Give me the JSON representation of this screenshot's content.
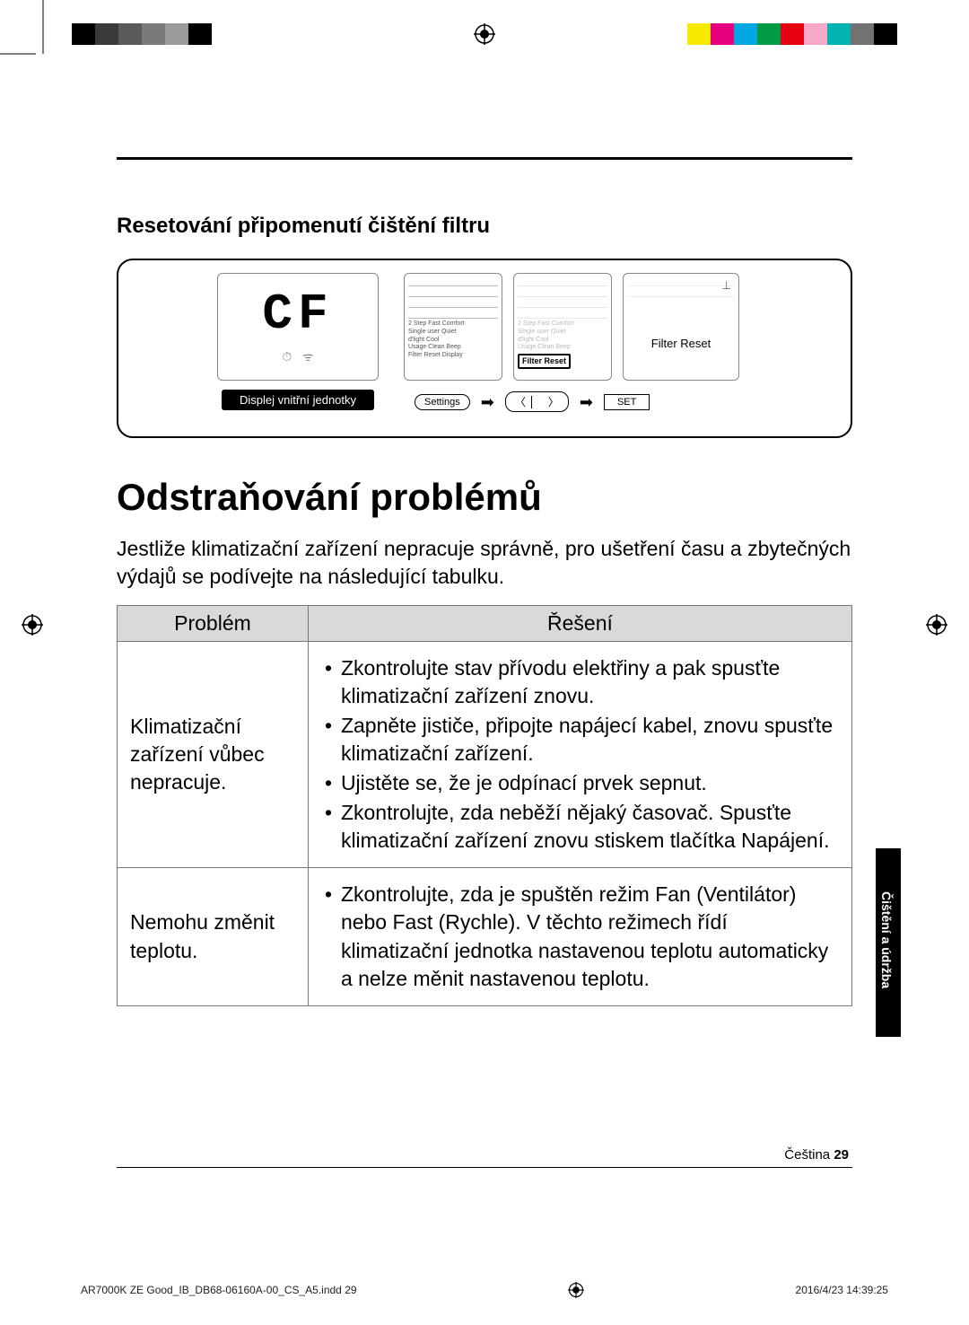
{
  "colorbar": {
    "left": [
      "#000000",
      "#3a3a3a",
      "#5a5a5a",
      "#7a7a7a",
      "#9a9a9a",
      "#000000"
    ],
    "right": [
      "#f7ea00",
      "#e4007f",
      "#00a7e1",
      "#009944",
      "#e60012",
      "#f5a8c7",
      "#00b3b0",
      "#727272",
      "#000000"
    ]
  },
  "section_title": "Resetování připomenutí čištění filtru",
  "diagram": {
    "lcd_text": "CF",
    "lcd_label": "Displej vnitřní jednotky",
    "remote_lines": [
      "2 Step  Fast  Comfort",
      "Single user  Quiet",
      "d'light Cool",
      "Usage  Clean  Beep",
      "Filter Reset   Display"
    ],
    "remote2_highlight": "Filter Reset",
    "remote3_text": "Filter Reset",
    "settings_btn": "Settings",
    "set_btn": "SET"
  },
  "main_heading": "Odstraňování problémů",
  "intro": "Jestliže klimatizační zařízení nepracuje správně, pro ušetření času a zbytečných výdajů se podívejte na následující tabulku.",
  "table": {
    "head_problem": "Problém",
    "head_solution": "Řešení",
    "rows": [
      {
        "problem": "Klimatizační zařízení vůbec nepracuje.",
        "solutions": [
          "Zkontrolujte stav přívodu elektřiny a pak spusťte klimatizační zařízení znovu.",
          "Zapněte jističe, připojte napájecí kabel, znovu spusťte klimatizační zařízení.",
          "Ujistěte se, že je odpínací prvek sepnut.",
          "Zkontrolujte, zda neběží nějaký časovač. Spusťte klimatizační zařízení znovu stiskem tlačítka Napájení."
        ]
      },
      {
        "problem": "Nemohu změnit teplotu.",
        "solutions": [
          "Zkontrolujte, zda je spuštěn režim Fan (Ventilátor) nebo Fast (Rychle). V těchto režimech řídí klimatizační jednotka nastavenou teplotu automaticky a nelze měnit nastavenou teplotu."
        ]
      }
    ]
  },
  "side_tab": "Čištění a údržba",
  "page_lang": "Čeština",
  "page_num": "29",
  "print_file": "AR7000K ZE Good_IB_DB68-06160A-00_CS_A5.indd   29",
  "print_time": "2016/4/23   14:39:25"
}
